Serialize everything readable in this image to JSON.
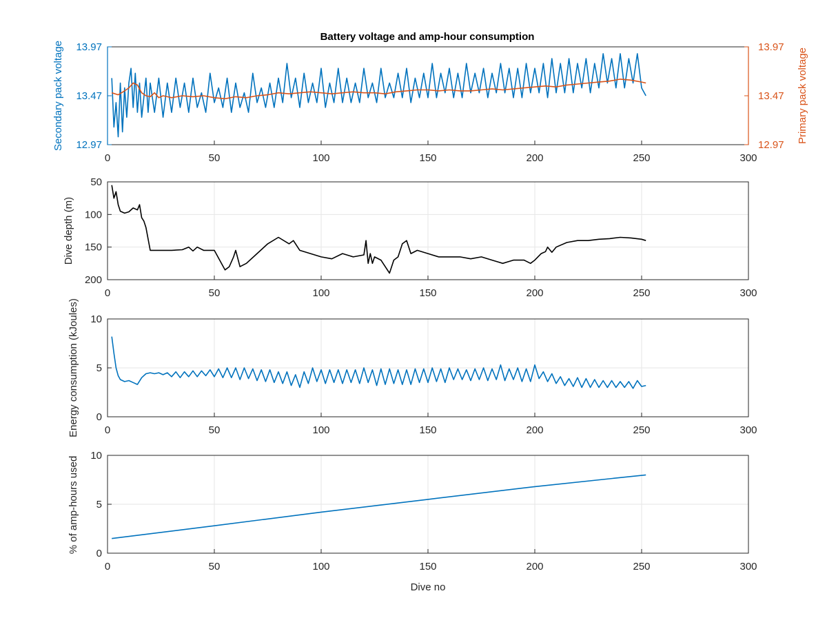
{
  "chart_data": [
    {
      "type": "line",
      "title": "Battery voltage and amp-hour consumption",
      "xlabel": "",
      "xlim": [
        0,
        300
      ],
      "xticks": [
        "0",
        "50",
        "100",
        "150",
        "200",
        "250",
        "300"
      ],
      "grid": false,
      "ylabel_left": "Secondary pack voltage",
      "ylim_left": [
        12.97,
        13.97
      ],
      "yticks_left": [
        "12.97",
        "13.47",
        "13.97"
      ],
      "ylabel_right": "Primary pack voltage",
      "ylim_right": [
        12.97,
        13.97
      ],
      "yticks_right": [
        "12.97",
        "13.47",
        "13.97"
      ],
      "series": [
        {
          "axis": "left",
          "color": "#0072bd",
          "x": [
            2,
            3,
            4,
            5,
            6,
            7,
            8,
            9,
            10,
            11,
            12,
            13,
            14,
            15,
            16,
            17,
            18,
            19,
            20,
            22,
            24,
            26,
            28,
            30,
            32,
            34,
            36,
            38,
            40,
            42,
            44,
            46,
            48,
            50,
            52,
            54,
            56,
            58,
            60,
            62,
            64,
            66,
            68,
            70,
            72,
            74,
            76,
            78,
            80,
            82,
            84,
            86,
            88,
            90,
            92,
            94,
            96,
            98,
            100,
            102,
            104,
            106,
            108,
            110,
            112,
            114,
            116,
            118,
            120,
            122,
            124,
            126,
            128,
            130,
            132,
            134,
            136,
            138,
            140,
            142,
            144,
            146,
            148,
            150,
            152,
            154,
            156,
            158,
            160,
            162,
            164,
            166,
            168,
            170,
            172,
            174,
            176,
            178,
            180,
            182,
            184,
            186,
            188,
            190,
            192,
            194,
            196,
            198,
            200,
            202,
            204,
            206,
            208,
            210,
            212,
            214,
            216,
            218,
            220,
            222,
            224,
            226,
            228,
            230,
            232,
            234,
            236,
            238,
            240,
            242,
            244,
            246,
            248,
            250,
            252
          ],
          "values": [
            13.65,
            13.15,
            13.4,
            13.05,
            13.6,
            13.1,
            13.55,
            13.25,
            13.6,
            13.75,
            13.35,
            13.7,
            13.3,
            13.6,
            13.25,
            13.45,
            13.65,
            13.3,
            13.6,
            13.3,
            13.65,
            13.25,
            13.6,
            13.3,
            13.65,
            13.35,
            13.6,
            13.3,
            13.65,
            13.35,
            13.5,
            13.3,
            13.7,
            13.4,
            13.55,
            13.35,
            13.65,
            13.3,
            13.6,
            13.35,
            13.5,
            13.3,
            13.7,
            13.4,
            13.55,
            13.35,
            13.6,
            13.35,
            13.65,
            13.4,
            13.8,
            13.45,
            13.65,
            13.35,
            13.7,
            13.4,
            13.6,
            13.4,
            13.75,
            13.35,
            13.6,
            13.4,
            13.75,
            13.4,
            13.65,
            13.4,
            13.6,
            13.4,
            13.75,
            13.45,
            13.6,
            13.4,
            13.75,
            13.45,
            13.6,
            13.45,
            13.7,
            13.45,
            13.75,
            13.4,
            13.65,
            13.45,
            13.7,
            13.45,
            13.8,
            13.45,
            13.7,
            13.5,
            13.75,
            13.45,
            13.7,
            13.45,
            13.8,
            13.5,
            13.7,
            13.5,
            13.75,
            13.45,
            13.7,
            13.5,
            13.8,
            13.5,
            13.75,
            13.45,
            13.75,
            13.45,
            13.8,
            13.5,
            13.75,
            13.5,
            13.8,
            13.45,
            13.85,
            13.5,
            13.8,
            13.5,
            13.85,
            13.5,
            13.8,
            13.55,
            13.85,
            13.5,
            13.8,
            13.55,
            13.9,
            13.6,
            13.85,
            13.55,
            13.9,
            13.55,
            13.85,
            13.6,
            13.9,
            13.55,
            13.47
          ]
        },
        {
          "axis": "right",
          "color": "#d95319",
          "x": [
            2,
            5,
            8,
            10,
            12,
            14,
            16,
            18,
            20,
            22,
            24,
            26,
            28,
            30,
            35,
            40,
            45,
            50,
            55,
            60,
            65,
            70,
            75,
            80,
            85,
            90,
            95,
            100,
            105,
            110,
            115,
            120,
            125,
            130,
            135,
            140,
            145,
            150,
            155,
            160,
            165,
            170,
            175,
            180,
            185,
            190,
            195,
            200,
            205,
            210,
            215,
            220,
            225,
            230,
            235,
            240,
            245,
            250,
            252
          ],
          "values": [
            13.5,
            13.48,
            13.52,
            13.55,
            13.6,
            13.58,
            13.5,
            13.47,
            13.46,
            13.5,
            13.45,
            13.47,
            13.46,
            13.45,
            13.47,
            13.46,
            13.47,
            13.45,
            13.44,
            13.46,
            13.45,
            13.47,
            13.48,
            13.5,
            13.49,
            13.5,
            13.51,
            13.5,
            13.49,
            13.5,
            13.51,
            13.5,
            13.5,
            13.49,
            13.51,
            13.52,
            13.53,
            13.53,
            13.52,
            13.53,
            13.52,
            13.52,
            13.53,
            13.54,
            13.53,
            13.54,
            13.55,
            13.56,
            13.57,
            13.56,
            13.58,
            13.59,
            13.6,
            13.61,
            13.62,
            13.64,
            13.63,
            13.61,
            13.6
          ]
        }
      ]
    },
    {
      "type": "line",
      "xlim": [
        0,
        300
      ],
      "xticks": [
        "0",
        "50",
        "100",
        "150",
        "200",
        "250",
        "300"
      ],
      "ylabel": "Dive depth (m)",
      "ylim": [
        50,
        200
      ],
      "y_reversed": true,
      "yticks": [
        "50",
        "100",
        "150",
        "200"
      ],
      "grid": true,
      "series": [
        {
          "color": "#000000",
          "x": [
            2,
            3,
            4,
            5,
            6,
            8,
            10,
            12,
            14,
            15,
            16,
            17,
            18,
            20,
            25,
            30,
            35,
            38,
            40,
            42,
            45,
            50,
            55,
            57,
            59,
            60,
            62,
            65,
            70,
            75,
            80,
            85,
            87,
            90,
            95,
            100,
            105,
            110,
            115,
            120,
            121,
            122,
            123,
            124,
            125,
            128,
            130,
            132,
            134,
            136,
            138,
            140,
            142,
            145,
            150,
            155,
            160,
            165,
            170,
            175,
            180,
            185,
            190,
            195,
            198,
            200,
            203,
            205,
            206,
            208,
            210,
            215,
            220,
            225,
            230,
            235,
            240,
            245,
            250,
            252
          ],
          "values": [
            55,
            75,
            65,
            85,
            95,
            98,
            96,
            90,
            93,
            85,
            105,
            110,
            120,
            155,
            155,
            155,
            154,
            150,
            156,
            150,
            155,
            155,
            185,
            180,
            165,
            155,
            180,
            175,
            160,
            145,
            135,
            145,
            140,
            155,
            160,
            165,
            168,
            160,
            165,
            162,
            140,
            175,
            160,
            175,
            165,
            170,
            180,
            190,
            170,
            165,
            145,
            140,
            160,
            155,
            160,
            165,
            165,
            165,
            168,
            165,
            170,
            175,
            170,
            170,
            175,
            170,
            160,
            157,
            150,
            158,
            150,
            143,
            140,
            140,
            138,
            137,
            135,
            136,
            138,
            140
          ]
        }
      ]
    },
    {
      "type": "line",
      "xlim": [
        0,
        300
      ],
      "xticks": [
        "0",
        "50",
        "100",
        "150",
        "200",
        "250",
        "300"
      ],
      "ylabel": "Energy consumption (kJoules)",
      "ylim": [
        0,
        10
      ],
      "yticks": [
        "0",
        "5",
        "10"
      ],
      "grid": true,
      "series": [
        {
          "color": "#0072bd",
          "x": [
            2,
            3,
            4,
            5,
            6,
            8,
            10,
            12,
            14,
            16,
            18,
            20,
            22,
            24,
            26,
            28,
            30,
            32,
            34,
            36,
            38,
            40,
            42,
            44,
            46,
            48,
            50,
            52,
            54,
            56,
            58,
            60,
            62,
            64,
            66,
            68,
            70,
            72,
            74,
            76,
            78,
            80,
            82,
            84,
            86,
            88,
            90,
            92,
            94,
            96,
            98,
            100,
            102,
            104,
            106,
            108,
            110,
            112,
            114,
            116,
            118,
            120,
            122,
            124,
            126,
            128,
            130,
            132,
            134,
            136,
            138,
            140,
            142,
            144,
            146,
            148,
            150,
            152,
            154,
            156,
            158,
            160,
            162,
            164,
            166,
            168,
            170,
            172,
            174,
            176,
            178,
            180,
            182,
            184,
            186,
            188,
            190,
            192,
            194,
            196,
            198,
            200,
            202,
            204,
            206,
            208,
            210,
            212,
            214,
            216,
            218,
            220,
            222,
            224,
            226,
            228,
            230,
            232,
            234,
            236,
            238,
            240,
            242,
            244,
            246,
            248,
            250,
            252
          ],
          "values": [
            8.2,
            6.5,
            5,
            4.2,
            3.8,
            3.6,
            3.7,
            3.5,
            3.3,
            4,
            4.4,
            4.5,
            4.4,
            4.5,
            4.3,
            4.5,
            4.1,
            4.6,
            4,
            4.6,
            4.1,
            4.7,
            4.1,
            4.7,
            4.2,
            4.8,
            4.1,
            4.9,
            4,
            5,
            4,
            5,
            3.8,
            5,
            3.9,
            4.9,
            3.7,
            4.8,
            3.6,
            4.8,
            3.5,
            4.6,
            3.4,
            4.6,
            3.2,
            4.3,
            3,
            4.6,
            3.4,
            5,
            3.6,
            4.8,
            3.4,
            4.8,
            3.5,
            4.8,
            3.4,
            4.8,
            3.5,
            4.8,
            3.4,
            5,
            3.5,
            4.8,
            3.2,
            4.9,
            3.3,
            4.9,
            3.4,
            4.8,
            3.3,
            4.8,
            3.3,
            4.9,
            3.5,
            4.9,
            3.5,
            5,
            3.6,
            4.9,
            3.5,
            5,
            3.8,
            4.9,
            3.8,
            4.8,
            3.7,
            4.9,
            3.8,
            5,
            3.7,
            4.9,
            3.8,
            5.3,
            3.7,
            4.9,
            3.8,
            5,
            3.6,
            4.9,
            3.6,
            5.3,
            3.9,
            4.6,
            3.6,
            4.4,
            3.4,
            4.1,
            3.2,
            3.9,
            3.1,
            4,
            3,
            3.9,
            3,
            3.8,
            3,
            3.7,
            3,
            3.7,
            3,
            3.6,
            3,
            3.6,
            2.9,
            3.7,
            3.1,
            3.2
          ]
        }
      ]
    },
    {
      "type": "line",
      "xlabel": "Dive no",
      "xlim": [
        0,
        300
      ],
      "xticks": [
        "0",
        "50",
        "100",
        "150",
        "200",
        "250",
        "300"
      ],
      "ylabel": "% of amp-hours used",
      "ylim": [
        0,
        10
      ],
      "yticks": [
        "0",
        "5",
        "10"
      ],
      "grid": true,
      "series": [
        {
          "color": "#0072bd",
          "x": [
            2,
            50,
            100,
            150,
            200,
            252
          ],
          "values": [
            1.5,
            2.8,
            4.2,
            5.5,
            6.8,
            8.0
          ]
        }
      ]
    }
  ]
}
